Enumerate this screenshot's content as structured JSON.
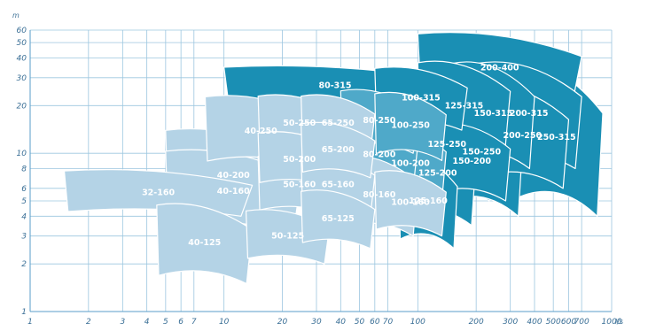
{
  "chart_data": {
    "type": "area",
    "xscale": "log",
    "yscale": "log",
    "xlim": [
      1,
      1000
    ],
    "ylim": [
      1,
      60
    ],
    "x_ticks": [
      "1",
      "2",
      "3",
      "4",
      "5",
      "6",
      "7",
      "10",
      "20",
      "30",
      "40",
      "50",
      "60",
      "70",
      "100",
      "200",
      "300",
      "400",
      "500",
      "600",
      "700",
      "1000"
    ],
    "x_tick_values": [
      1,
      2,
      3,
      4,
      5,
      6,
      7,
      10,
      20,
      30,
      40,
      50,
      60,
      70,
      100,
      200,
      300,
      400,
      500,
      600,
      700,
      1000
    ],
    "x_unit": "l/s",
    "y_ticks": [
      "1",
      "2",
      "3",
      "4",
      "5",
      "6",
      "8",
      "10",
      "20",
      "30",
      "40",
      "50",
      "60"
    ],
    "y_tick_values": [
      1,
      2,
      3,
      4,
      5,
      6,
      8,
      10,
      20,
      30,
      40,
      50,
      60
    ],
    "y_unit": "m",
    "colors": {
      "light": "#b4d3e6",
      "medium": "#4fa9c9",
      "dark": "#1a8fb4",
      "grid": "#9cc6df",
      "text": "#3a6f96"
    },
    "regions": [
      {
        "label": "32-160",
        "tone": "light",
        "q_range": [
          1.5,
          14
        ],
        "h_range": [
          4,
          8
        ]
      },
      {
        "label": "40-125",
        "tone": "light",
        "q_range": [
          4.5,
          14
        ],
        "h_range": [
          1.5,
          5
        ]
      },
      {
        "label": "40-160",
        "tone": "light",
        "q_range": [
          5,
          25
        ],
        "h_range": [
          3,
          11
        ]
      },
      {
        "label": "40-200",
        "tone": "light",
        "q_range": [
          5,
          25
        ],
        "h_range": [
          3.5,
          15
        ]
      },
      {
        "label": "40-250",
        "tone": "light",
        "q_range": [
          8,
          30
        ],
        "h_range": [
          8,
          24
        ]
      },
      {
        "label": "50-125",
        "tone": "light",
        "q_range": [
          13,
          35
        ],
        "h_range": [
          2,
          4.5
        ]
      },
      {
        "label": "50-160",
        "tone": "light",
        "q_range": [
          15,
          40
        ],
        "h_range": [
          4,
          10
        ]
      },
      {
        "label": "50-200",
        "tone": "light",
        "q_range": [
          15,
          40
        ],
        "h_range": [
          6,
          14
        ]
      },
      {
        "label": "50-250",
        "tone": "light",
        "q_range": [
          15,
          40
        ],
        "h_range": [
          10,
          24
        ]
      },
      {
        "label": "65-125",
        "tone": "light",
        "q_range": [
          25,
          60
        ],
        "h_range": [
          2.5,
          6
        ]
      },
      {
        "label": "65-160",
        "tone": "light",
        "q_range": [
          25,
          60
        ],
        "h_range": [
          4,
          10
        ]
      },
      {
        "label": "65-200",
        "tone": "light",
        "q_range": [
          25,
          60
        ],
        "h_range": [
          7,
          16
        ]
      },
      {
        "label": "65-250",
        "tone": "light",
        "q_range": [
          25,
          60
        ],
        "h_range": [
          10,
          24
        ]
      },
      {
        "label": "80-160",
        "tone": "light",
        "q_range": [
          40,
          100
        ],
        "h_range": [
          3,
          10
        ]
      },
      {
        "label": "80-200",
        "tone": "medium",
        "q_range": [
          40,
          100
        ],
        "h_range": [
          6,
          16
        ]
      },
      {
        "label": "80-250",
        "tone": "medium",
        "q_range": [
          40,
          100
        ],
        "h_range": [
          10,
          26
        ]
      },
      {
        "label": "80-315",
        "tone": "dark",
        "q_range": [
          10,
          140
        ],
        "h_range": [
          20,
          36
        ]
      },
      {
        "label": "100-160",
        "tone": "light",
        "q_range": [
          60,
          140
        ],
        "h_range": [
          3,
          8
        ]
      },
      {
        "label": "100-200",
        "tone": "medium",
        "q_range": [
          60,
          140
        ],
        "h_range": [
          5,
          15
        ]
      },
      {
        "label": "100-250",
        "tone": "medium",
        "q_range": [
          60,
          140
        ],
        "h_range": [
          9,
          25
        ]
      },
      {
        "label": "100-315",
        "tone": "dark",
        "q_range": [
          60,
          180
        ],
        "h_range": [
          14,
          36
        ]
      },
      {
        "label": "125-160",
        "tone": "dark",
        "q_range": [
          80,
          160
        ],
        "h_range": [
          2.5,
          10
        ]
      },
      {
        "label": "125-200",
        "tone": "dark",
        "q_range": [
          80,
          200
        ],
        "h_range": [
          3.5,
          16
        ]
      },
      {
        "label": "125-250",
        "tone": "dark",
        "q_range": [
          80,
          250
        ],
        "h_range": [
          5,
          26
        ]
      },
      {
        "label": "125-315",
        "tone": "dark",
        "q_range": [
          100,
          300
        ],
        "h_range": [
          10,
          40
        ]
      },
      {
        "label": "150-200",
        "tone": "dark",
        "q_range": [
          120,
          300
        ],
        "h_range": [
          5,
          16
        ]
      },
      {
        "label": "150-250",
        "tone": "dark",
        "q_range": [
          130,
          350
        ],
        "h_range": [
          4,
          26
        ]
      },
      {
        "label": "150-315",
        "tone": "dark",
        "q_range": [
          150,
          400
        ],
        "h_range": [
          8,
          40
        ]
      },
      {
        "label": "200-250",
        "tone": "dark",
        "q_range": [
          200,
          600
        ],
        "h_range": [
          6,
          28
        ]
      },
      {
        "label": "200-315",
        "tone": "dark",
        "q_range": [
          200,
          700
        ],
        "h_range": [
          8,
          40
        ]
      },
      {
        "label": "200-400",
        "tone": "dark",
        "q_range": [
          100,
          700
        ],
        "h_range": [
          20,
          60
        ]
      },
      {
        "label": "250-315",
        "tone": "dark",
        "q_range": [
          300,
          900
        ],
        "h_range": [
          4,
          40
        ]
      }
    ]
  }
}
